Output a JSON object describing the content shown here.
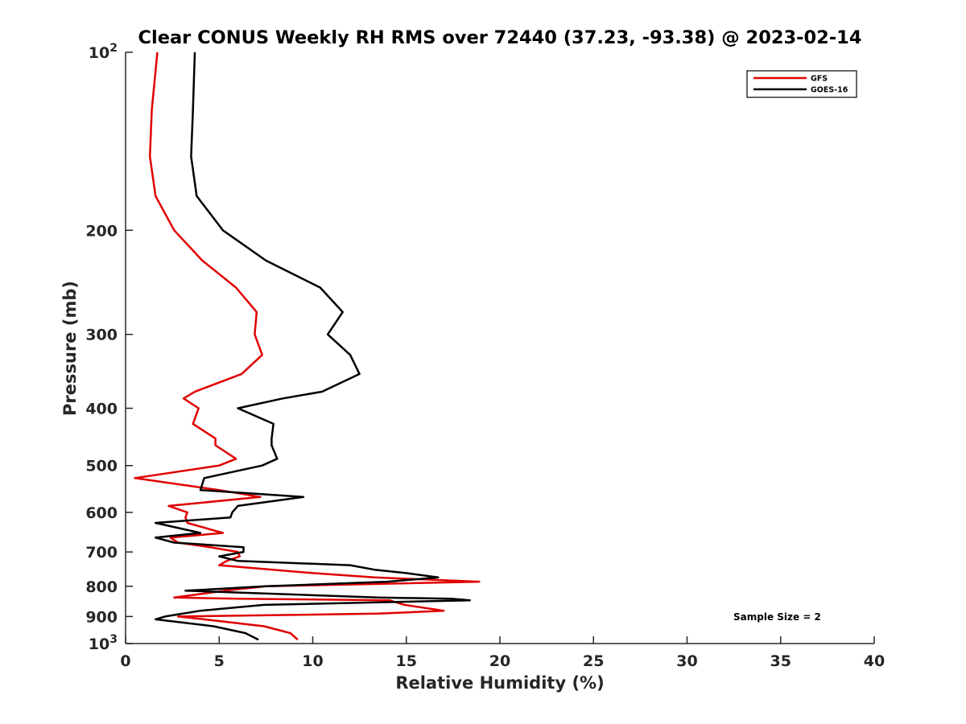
{
  "chart_data": {
    "type": "line",
    "title": "Clear CONUS Weekly RH RMS over 72440 (37.23, -93.38) @ 2023-02-14",
    "xlabel": "Relative Humidity (%)",
    "ylabel": "Pressure (mb)",
    "xlim": [
      0,
      40
    ],
    "ylim": [
      100,
      1000
    ],
    "y_scale": "log",
    "y_reversed": true,
    "x_ticks": [
      "0",
      "5",
      "10",
      "15",
      "20",
      "25",
      "30",
      "35",
      "40"
    ],
    "y_tick_values": [
      100,
      200,
      300,
      400,
      500,
      600,
      700,
      800,
      900,
      1000
    ],
    "y_tick_labels": [
      {
        "base": "10",
        "exp": "2"
      },
      {
        "base": "200",
        "exp": ""
      },
      {
        "base": "300",
        "exp": ""
      },
      {
        "base": "400",
        "exp": ""
      },
      {
        "base": "500",
        "exp": ""
      },
      {
        "base": "600",
        "exp": ""
      },
      {
        "base": "700",
        "exp": ""
      },
      {
        "base": "800",
        "exp": ""
      },
      {
        "base": "900",
        "exp": ""
      },
      {
        "base": "10",
        "exp": "3"
      }
    ],
    "grid": false,
    "legend_position": "top-right",
    "annotation": "Sample Size = 2",
    "series": [
      {
        "name": "GFS",
        "color": "#e00000",
        "points": [
          [
            1.7,
            100
          ],
          [
            1.4,
            125
          ],
          [
            1.3,
            150
          ],
          [
            1.6,
            175
          ],
          [
            2.6,
            200
          ],
          [
            4.1,
            225
          ],
          [
            5.9,
            250
          ],
          [
            7.0,
            275
          ],
          [
            6.9,
            300
          ],
          [
            7.3,
            325
          ],
          [
            6.2,
            350
          ],
          [
            3.7,
            375
          ],
          [
            3.1,
            385
          ],
          [
            3.9,
            400
          ],
          [
            3.6,
            425
          ],
          [
            4.8,
            450
          ],
          [
            4.8,
            462
          ],
          [
            5.9,
            487
          ],
          [
            5.0,
            500
          ],
          [
            0.5,
            525
          ],
          [
            5.0,
            550
          ],
          [
            7.2,
            565
          ],
          [
            2.3,
            585
          ],
          [
            3.3,
            600
          ],
          [
            3.2,
            612
          ],
          [
            3.3,
            625
          ],
          [
            5.2,
            650
          ],
          [
            2.4,
            662
          ],
          [
            2.8,
            675
          ],
          [
            4.5,
            687
          ],
          [
            6.0,
            700
          ],
          [
            6.1,
            712
          ],
          [
            5.4,
            725
          ],
          [
            5.0,
            737
          ],
          [
            10.0,
            760
          ],
          [
            13.3,
            773
          ],
          [
            18.9,
            786
          ],
          [
            7.5,
            800
          ],
          [
            5.3,
            814
          ],
          [
            2.6,
            836
          ],
          [
            6.0,
            840
          ],
          [
            14.1,
            845
          ],
          [
            14.9,
            860
          ],
          [
            17.0,
            880
          ],
          [
            13.5,
            890
          ],
          [
            2.8,
            900
          ],
          [
            4.2,
            910
          ],
          [
            7.4,
            935
          ],
          [
            8.8,
            960
          ],
          [
            9.2,
            985
          ]
        ]
      },
      {
        "name": "GOES-16",
        "color": "#000000",
        "points": [
          [
            3.7,
            100
          ],
          [
            3.6,
            125
          ],
          [
            3.5,
            150
          ],
          [
            3.8,
            175
          ],
          [
            5.2,
            200
          ],
          [
            7.5,
            225
          ],
          [
            10.4,
            250
          ],
          [
            11.6,
            275
          ],
          [
            10.8,
            300
          ],
          [
            12.0,
            325
          ],
          [
            12.5,
            350
          ],
          [
            10.5,
            375
          ],
          [
            8.4,
            385
          ],
          [
            6.0,
            400
          ],
          [
            7.9,
            425
          ],
          [
            7.8,
            450
          ],
          [
            7.8,
            462
          ],
          [
            8.1,
            487
          ],
          [
            7.3,
            500
          ],
          [
            4.2,
            525
          ],
          [
            4.0,
            550
          ],
          [
            9.5,
            565
          ],
          [
            6.0,
            585
          ],
          [
            5.7,
            600
          ],
          [
            5.6,
            612
          ],
          [
            1.6,
            625
          ],
          [
            4.0,
            650
          ],
          [
            1.6,
            662
          ],
          [
            2.6,
            675
          ],
          [
            6.3,
            687
          ],
          [
            6.3,
            700
          ],
          [
            5.0,
            712
          ],
          [
            6.0,
            725
          ],
          [
            12.0,
            737
          ],
          [
            13.3,
            750
          ],
          [
            15.0,
            760
          ],
          [
            16.7,
            773
          ],
          [
            14.0,
            786
          ],
          [
            7.5,
            800
          ],
          [
            3.2,
            814
          ],
          [
            13.5,
            836
          ],
          [
            17.4,
            840
          ],
          [
            18.4,
            845
          ],
          [
            7.4,
            860
          ],
          [
            4.0,
            880
          ],
          [
            2.1,
            900
          ],
          [
            1.6,
            910
          ],
          [
            4.7,
            935
          ],
          [
            6.4,
            960
          ],
          [
            7.1,
            985
          ]
        ]
      }
    ]
  }
}
